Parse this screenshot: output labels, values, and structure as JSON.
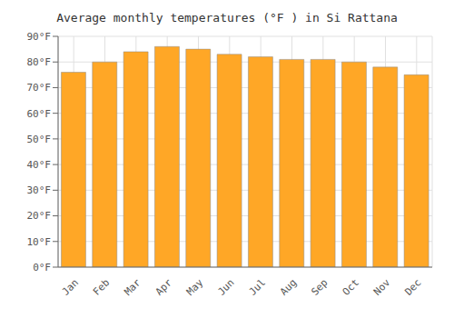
{
  "chart_data": {
    "type": "bar",
    "title": "Average monthly temperatures (°F ) in Si Rattana",
    "categories": [
      "Jan",
      "Feb",
      "Mar",
      "Apr",
      "May",
      "Jun",
      "Jul",
      "Aug",
      "Sep",
      "Oct",
      "Nov",
      "Dec"
    ],
    "values": [
      76,
      80,
      84,
      86,
      85,
      83,
      82,
      81,
      81,
      80,
      78,
      75
    ],
    "color": "#FFA726",
    "ylim": [
      0,
      90
    ],
    "yticks": [
      {
        "value": 0,
        "label": "0°F"
      },
      {
        "value": 10,
        "label": "10°F"
      },
      {
        "value": 20,
        "label": "20°F"
      },
      {
        "value": 30,
        "label": "30°F"
      },
      {
        "value": 40,
        "label": "40°F"
      },
      {
        "value": 50,
        "label": "50°F"
      },
      {
        "value": 60,
        "label": "60°F"
      },
      {
        "value": 70,
        "label": "70°F"
      },
      {
        "value": 80,
        "label": "80°F"
      },
      {
        "value": 90,
        "label": "90°F"
      }
    ],
    "grid": true
  }
}
